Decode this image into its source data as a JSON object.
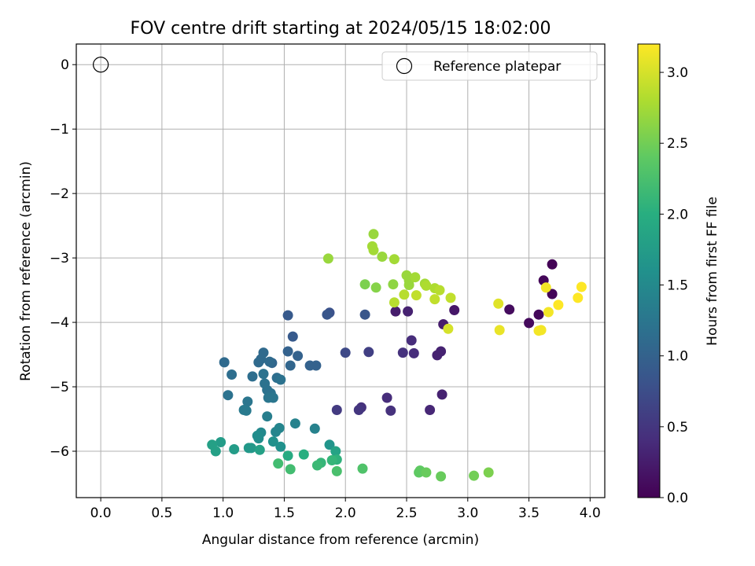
{
  "chart_data": {
    "type": "scatter",
    "title": "FOV centre drift starting at 2024/05/15 18:02:00",
    "xlabel": "Angular distance from reference (arcmin)",
    "ylabel": "Rotation from reference (arcmin)",
    "xlim": [
      -0.2,
      4.12
    ],
    "ylim": [
      -6.72,
      0.32
    ],
    "xticks": [
      "0.0",
      "0.5",
      "1.0",
      "1.5",
      "2.0",
      "2.5",
      "3.0",
      "3.5",
      "4.0"
    ],
    "xtick_values": [
      0,
      0.5,
      1,
      1.5,
      2,
      2.5,
      3,
      3.5,
      4
    ],
    "yticks": [
      "0",
      "−1",
      "−2",
      "−3",
      "−4",
      "−5",
      "−6"
    ],
    "ytick_values": [
      0,
      -1,
      -2,
      -3,
      -4,
      -5,
      -6
    ],
    "grid": true,
    "legend": {
      "position": "top-right",
      "label": "Reference platepar"
    },
    "reference_point": {
      "x": 0,
      "y": 0
    },
    "colorbar": {
      "label": "Hours from first FF file",
      "colormap": "viridis",
      "range": [
        0,
        3.2
      ],
      "ticks": [
        "0.0",
        "0.5",
        "1.0",
        "1.5",
        "2.0",
        "2.5",
        "3.0"
      ],
      "tick_values": [
        0,
        0.5,
        1,
        1.5,
        2,
        2.5,
        3
      ]
    },
    "points": [
      [
        3.69,
        -3.1,
        0.02
      ],
      [
        3.62,
        -3.35,
        0.05
      ],
      [
        3.69,
        -3.56,
        0.04
      ],
      [
        3.58,
        -3.88,
        0.06
      ],
      [
        3.5,
        -4.01,
        0.08
      ],
      [
        3.34,
        -3.8,
        0.1
      ],
      [
        2.89,
        -3.81,
        0.2
      ],
      [
        2.8,
        -4.03,
        0.25
      ],
      [
        2.78,
        -4.45,
        0.3
      ],
      [
        2.75,
        -4.51,
        0.3
      ],
      [
        2.41,
        -3.83,
        0.25
      ],
      [
        2.51,
        -3.83,
        0.3
      ],
      [
        2.54,
        -4.28,
        0.4
      ],
      [
        2.56,
        -4.48,
        0.4
      ],
      [
        2.47,
        -4.47,
        0.45
      ],
      [
        2.79,
        -5.12,
        0.3
      ],
      [
        2.69,
        -5.36,
        0.35
      ],
      [
        2.34,
        -5.17,
        0.4
      ],
      [
        2.37,
        -5.37,
        0.45
      ],
      [
        2.13,
        -5.32,
        0.45
      ],
      [
        2.11,
        -5.36,
        0.5
      ],
      [
        1.93,
        -5.36,
        0.55
      ],
      [
        2.19,
        -4.46,
        0.6
      ],
      [
        2.0,
        -4.47,
        0.7
      ],
      [
        1.87,
        -3.85,
        0.8
      ],
      [
        1.85,
        -3.88,
        0.85
      ],
      [
        2.16,
        -3.88,
        0.85
      ],
      [
        1.53,
        -3.89,
        0.9
      ],
      [
        1.57,
        -4.22,
        0.9
      ],
      [
        1.53,
        -4.45,
        1.0
      ],
      [
        1.61,
        -4.52,
        1.0
      ],
      [
        1.71,
        -4.67,
        1.0
      ],
      [
        1.76,
        -4.67,
        1.0
      ],
      [
        1.55,
        -4.67,
        1.05
      ],
      [
        1.4,
        -4.63,
        1.05
      ],
      [
        1.38,
        -4.61,
        1.1
      ],
      [
        1.33,
        -4.47,
        1.1
      ],
      [
        1.31,
        -4.57,
        1.1
      ],
      [
        1.29,
        -4.62,
        1.1
      ],
      [
        1.01,
        -4.62,
        1.1
      ],
      [
        1.07,
        -4.81,
        1.15
      ],
      [
        1.24,
        -4.84,
        1.15
      ],
      [
        1.33,
        -4.8,
        1.2
      ],
      [
        1.44,
        -4.86,
        1.15
      ],
      [
        1.47,
        -4.89,
        1.2
      ],
      [
        1.34,
        -4.95,
        1.2
      ],
      [
        1.36,
        -5.05,
        1.2
      ],
      [
        1.39,
        -5.1,
        1.2
      ],
      [
        1.41,
        -5.17,
        1.25
      ],
      [
        1.37,
        -5.17,
        1.25
      ],
      [
        1.04,
        -5.13,
        1.2
      ],
      [
        1.2,
        -5.23,
        1.25
      ],
      [
        1.17,
        -5.36,
        1.3
      ],
      [
        1.19,
        -5.37,
        1.3
      ],
      [
        1.36,
        -5.46,
        1.35
      ],
      [
        1.59,
        -5.57,
        1.4
      ],
      [
        1.75,
        -5.65,
        1.4
      ],
      [
        1.46,
        -5.64,
        1.45
      ],
      [
        1.43,
        -5.7,
        1.45
      ],
      [
        1.31,
        -5.71,
        1.5
      ],
      [
        1.28,
        -5.76,
        1.55
      ],
      [
        1.29,
        -5.8,
        1.55
      ],
      [
        1.41,
        -5.85,
        1.6
      ],
      [
        1.47,
        -5.93,
        1.6
      ],
      [
        1.87,
        -5.9,
        1.65
      ],
      [
        1.21,
        -5.95,
        1.7
      ],
      [
        1.23,
        -5.95,
        1.7
      ],
      [
        1.09,
        -5.97,
        1.75
      ],
      [
        0.98,
        -5.86,
        1.75
      ],
      [
        0.91,
        -5.9,
        1.8
      ],
      [
        0.94,
        -6.0,
        1.8
      ],
      [
        1.3,
        -5.98,
        1.8
      ],
      [
        1.92,
        -6.0,
        1.85
      ],
      [
        1.53,
        -6.07,
        1.95
      ],
      [
        1.66,
        -6.05,
        2.0
      ],
      [
        1.93,
        -6.13,
        2.05
      ],
      [
        1.89,
        -6.14,
        2.1
      ],
      [
        1.8,
        -6.18,
        2.1
      ],
      [
        1.77,
        -6.22,
        2.15
      ],
      [
        1.45,
        -6.19,
        2.2
      ],
      [
        1.55,
        -6.28,
        2.2
      ],
      [
        1.93,
        -6.31,
        2.25
      ],
      [
        2.14,
        -6.27,
        2.3
      ],
      [
        2.61,
        -6.3,
        2.4
      ],
      [
        2.6,
        -6.33,
        2.4
      ],
      [
        2.66,
        -6.33,
        2.45
      ],
      [
        2.78,
        -6.39,
        2.45
      ],
      [
        3.05,
        -6.38,
        2.5
      ],
      [
        3.17,
        -6.33,
        2.55
      ],
      [
        2.16,
        -3.41,
        2.55
      ],
      [
        2.25,
        -3.46,
        2.6
      ],
      [
        2.39,
        -3.41,
        2.65
      ],
      [
        2.5,
        -3.27,
        2.7
      ],
      [
        2.52,
        -3.35,
        2.7
      ],
      [
        2.52,
        -3.42,
        2.7
      ],
      [
        2.57,
        -3.3,
        2.75
      ],
      [
        2.65,
        -3.4,
        2.75
      ],
      [
        2.66,
        -3.43,
        2.8
      ],
      [
        2.73,
        -3.47,
        2.8
      ],
      [
        2.77,
        -3.5,
        2.85
      ],
      [
        2.48,
        -3.57,
        2.85
      ],
      [
        2.58,
        -3.58,
        2.9
      ],
      [
        2.73,
        -3.64,
        2.9
      ],
      [
        2.86,
        -3.62,
        2.9
      ],
      [
        2.4,
        -3.69,
        2.85
      ],
      [
        2.3,
        -2.98,
        2.7
      ],
      [
        2.22,
        -2.82,
        2.75
      ],
      [
        2.23,
        -2.88,
        2.75
      ],
      [
        2.23,
        -2.63,
        2.7
      ],
      [
        2.4,
        -3.02,
        2.75
      ],
      [
        1.86,
        -3.01,
        2.7
      ],
      [
        2.84,
        -4.1,
        3.0
      ],
      [
        3.25,
        -3.71,
        3.05
      ],
      [
        3.26,
        -4.12,
        3.1
      ],
      [
        3.58,
        -4.13,
        3.15
      ],
      [
        3.6,
        -4.12,
        3.15
      ],
      [
        3.66,
        -3.84,
        3.15
      ],
      [
        3.64,
        -3.46,
        3.15
      ],
      [
        3.74,
        -3.73,
        3.2
      ],
      [
        3.9,
        -3.62,
        3.2
      ],
      [
        3.93,
        -3.45,
        3.2
      ]
    ]
  }
}
